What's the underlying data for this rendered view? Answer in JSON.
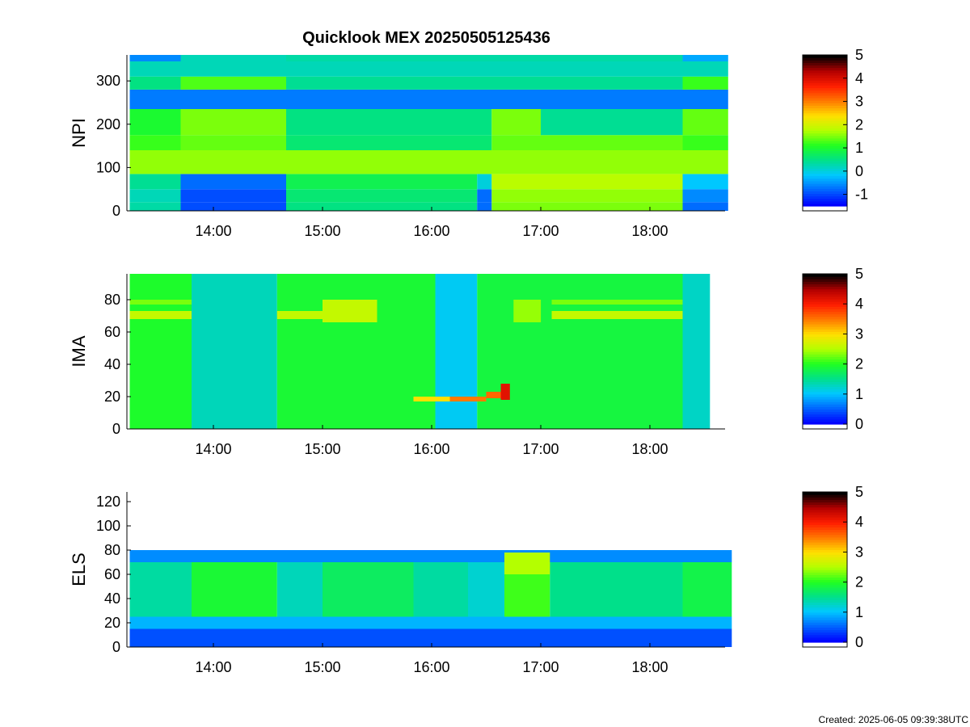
{
  "title": "Quicklook MEX 20250505125436",
  "created": "Created: 2025-06-05 09:39:38UTC",
  "colormap": [
    "#0000ff",
    "#0064ff",
    "#00c8ff",
    "#00e08a",
    "#20ff20",
    "#b4ff00",
    "#ffe000",
    "#ff7a00",
    "#ff1e00",
    "#b40000",
    "#000000"
  ],
  "chart_data": [
    {
      "type": "heatmap",
      "ylabel": "NPI",
      "x_ticks": [
        "14:00",
        "15:00",
        "16:00",
        "17:00",
        "18:00"
      ],
      "y_ticks": [
        "0",
        "100",
        "200",
        "300"
      ],
      "ylim": [
        0,
        360
      ],
      "colorbar": {
        "ticks": [
          "-1",
          "0",
          "1",
          "2",
          "3",
          "4",
          "5"
        ],
        "range": [
          -1.5,
          5
        ]
      },
      "rows": [
        {
          "y": [
            0,
            20
          ],
          "segments": [
            {
              "from": "13:14",
              "to": "13:42",
              "v": 0.3
            },
            {
              "from": "13:42",
              "to": "14:40",
              "v": -1.0
            },
            {
              "from": "14:40",
              "to": "16:25",
              "v": 0.5
            },
            {
              "from": "16:25",
              "to": "16:33",
              "v": -0.8
            },
            {
              "from": "16:33",
              "to": "18:18",
              "v": 1.5
            },
            {
              "from": "18:18",
              "to": "18:43",
              "v": -0.8
            }
          ]
        },
        {
          "y": [
            20,
            50
          ],
          "segments": [
            {
              "from": "13:14",
              "to": "13:42",
              "v": 0.2
            },
            {
              "from": "13:42",
              "to": "14:40",
              "v": -1.0
            },
            {
              "from": "14:40",
              "to": "16:25",
              "v": 0.6
            },
            {
              "from": "16:25",
              "to": "16:33",
              "v": -0.8
            },
            {
              "from": "16:33",
              "to": "18:18",
              "v": 1.6
            },
            {
              "from": "18:18",
              "to": "18:43",
              "v": -0.6
            }
          ]
        },
        {
          "y": [
            50,
            85
          ],
          "segments": [
            {
              "from": "13:14",
              "to": "13:42",
              "v": 0.4
            },
            {
              "from": "13:42",
              "to": "14:40",
              "v": -0.8
            },
            {
              "from": "14:40",
              "to": "16:25",
              "v": 0.8
            },
            {
              "from": "16:25",
              "to": "16:33",
              "v": 0.0
            },
            {
              "from": "16:33",
              "to": "18:18",
              "v": 1.8
            },
            {
              "from": "18:18",
              "to": "18:43",
              "v": -0.2
            }
          ]
        },
        {
          "y": [
            85,
            140
          ],
          "segments": [
            {
              "from": "13:14",
              "to": "18:43",
              "v": 1.6
            }
          ]
        },
        {
          "y": [
            140,
            175
          ],
          "segments": [
            {
              "from": "13:14",
              "to": "13:42",
              "v": 1.2
            },
            {
              "from": "13:42",
              "to": "14:40",
              "v": 1.4
            },
            {
              "from": "14:40",
              "to": "16:33",
              "v": 0.6
            },
            {
              "from": "16:33",
              "to": "18:18",
              "v": 1.4
            },
            {
              "from": "18:18",
              "to": "18:43",
              "v": 1.2
            }
          ]
        },
        {
          "y": [
            175,
            235
          ],
          "segments": [
            {
              "from": "13:14",
              "to": "13:42",
              "v": 1.0
            },
            {
              "from": "13:42",
              "to": "14:40",
              "v": 1.5
            },
            {
              "from": "14:40",
              "to": "16:33",
              "v": 0.5
            },
            {
              "from": "16:33",
              "to": "17:00",
              "v": 1.5
            },
            {
              "from": "17:00",
              "to": "18:18",
              "v": 0.4
            },
            {
              "from": "18:18",
              "to": "18:43",
              "v": 1.4
            }
          ]
        },
        {
          "y": [
            235,
            280
          ],
          "segments": [
            {
              "from": "13:14",
              "to": "18:43",
              "v": -0.7
            }
          ]
        },
        {
          "y": [
            280,
            310
          ],
          "segments": [
            {
              "from": "13:14",
              "to": "13:42",
              "v": 0.5
            },
            {
              "from": "13:42",
              "to": "14:40",
              "v": 1.3
            },
            {
              "from": "14:40",
              "to": "18:18",
              "v": 0.4
            },
            {
              "from": "18:18",
              "to": "18:43",
              "v": 1.2
            }
          ]
        },
        {
          "y": [
            310,
            345
          ],
          "segments": [
            {
              "from": "13:14",
              "to": "18:43",
              "v": 0.2
            }
          ]
        },
        {
          "y": [
            345,
            360
          ],
          "segments": [
            {
              "from": "13:14",
              "to": "13:42",
              "v": -0.6
            },
            {
              "from": "13:42",
              "to": "14:40",
              "v": 0.2
            },
            {
              "from": "14:40",
              "to": "18:18",
              "v": 0.3
            },
            {
              "from": "18:18",
              "to": "18:43",
              "v": -0.4
            }
          ]
        }
      ]
    },
    {
      "type": "heatmap",
      "ylabel": "IMA",
      "x_ticks": [
        "14:00",
        "15:00",
        "16:00",
        "17:00",
        "18:00"
      ],
      "y_ticks": [
        "0",
        "20",
        "40",
        "60",
        "80"
      ],
      "ylim": [
        0,
        96
      ],
      "colorbar": {
        "ticks": [
          "0",
          "1",
          "2",
          "3",
          "4",
          "5"
        ],
        "range": [
          0,
          5
        ]
      },
      "rows": [
        {
          "y": [
            0,
            96
          ],
          "segments": [
            {
              "from": "13:14",
              "to": "13:48",
              "v": 1.95
            },
            {
              "from": "13:48",
              "to": "14:35",
              "v": 1.3
            },
            {
              "from": "14:35",
              "to": "16:02",
              "v": 1.9
            },
            {
              "from": "16:02",
              "to": "16:25",
              "v": 1.05
            },
            {
              "from": "16:25",
              "to": "18:18",
              "v": 1.85
            },
            {
              "from": "18:18",
              "to": "18:33",
              "v": 1.25
            }
          ]
        },
        {
          "y": [
            68,
            73
          ],
          "segments": [
            {
              "from": "13:14",
              "to": "13:48",
              "v": 2.6
            },
            {
              "from": "14:35",
              "to": "15:00",
              "v": 2.6
            },
            {
              "from": "17:06",
              "to": "18:18",
              "v": 2.6
            }
          ]
        },
        {
          "y": [
            77,
            80
          ],
          "segments": [
            {
              "from": "13:14",
              "to": "13:48",
              "v": 2.3
            },
            {
              "from": "17:06",
              "to": "18:18",
              "v": 2.3
            }
          ]
        },
        {
          "y": [
            66,
            80
          ],
          "segments": [
            {
              "from": "15:00",
              "to": "15:30",
              "v": 2.6
            },
            {
              "from": "16:45",
              "to": "17:00",
              "v": 2.4
            }
          ]
        },
        {
          "y": [
            17,
            20
          ],
          "segments": [
            {
              "from": "15:50",
              "to": "16:10",
              "v": 3.0
            },
            {
              "from": "16:10",
              "to": "16:30",
              "v": 3.5
            }
          ]
        },
        {
          "y": [
            19,
            23
          ],
          "segments": [
            {
              "from": "16:30",
              "to": "16:42",
              "v": 3.6
            }
          ]
        },
        {
          "y": [
            18,
            28
          ],
          "segments": [
            {
              "from": "16:38",
              "to": "16:43",
              "v": 4.2
            }
          ]
        }
      ]
    },
    {
      "type": "heatmap",
      "ylabel": "ELS",
      "x_ticks": [
        "14:00",
        "15:00",
        "16:00",
        "17:00",
        "18:00"
      ],
      "y_ticks": [
        "0",
        "20",
        "40",
        "60",
        "80",
        "100",
        "120"
      ],
      "ylim": [
        0,
        128
      ],
      "colorbar": {
        "ticks": [
          "0",
          "1",
          "2",
          "3",
          "4",
          "5"
        ],
        "range": [
          0,
          5
        ]
      },
      "rows": [
        {
          "y": [
            0,
            15
          ],
          "segments": [
            {
              "from": "13:14",
              "to": "18:45",
              "v": 0.4
            }
          ]
        },
        {
          "y": [
            15,
            25
          ],
          "segments": [
            {
              "from": "13:14",
              "to": "18:45",
              "v": 0.9
            }
          ]
        },
        {
          "y": [
            25,
            70
          ],
          "segments": [
            {
              "from": "13:14",
              "to": "13:48",
              "v": 1.4
            },
            {
              "from": "13:48",
              "to": "14:35",
              "v": 1.9
            },
            {
              "from": "14:35",
              "to": "15:00",
              "v": 1.3
            },
            {
              "from": "15:00",
              "to": "15:50",
              "v": 1.7
            },
            {
              "from": "15:50",
              "to": "16:20",
              "v": 1.4
            },
            {
              "from": "16:20",
              "to": "16:40",
              "v": 1.2
            },
            {
              "from": "16:40",
              "to": "17:05",
              "v": 2.1
            },
            {
              "from": "17:05",
              "to": "18:18",
              "v": 1.5
            },
            {
              "from": "18:18",
              "to": "18:45",
              "v": 1.8
            }
          ]
        },
        {
          "y": [
            70,
            80
          ],
          "segments": [
            {
              "from": "13:14",
              "to": "18:45",
              "v": 0.7
            }
          ]
        },
        {
          "y": [
            60,
            78
          ],
          "segments": [
            {
              "from": "16:40",
              "to": "17:05",
              "v": 2.5
            }
          ]
        }
      ]
    }
  ]
}
